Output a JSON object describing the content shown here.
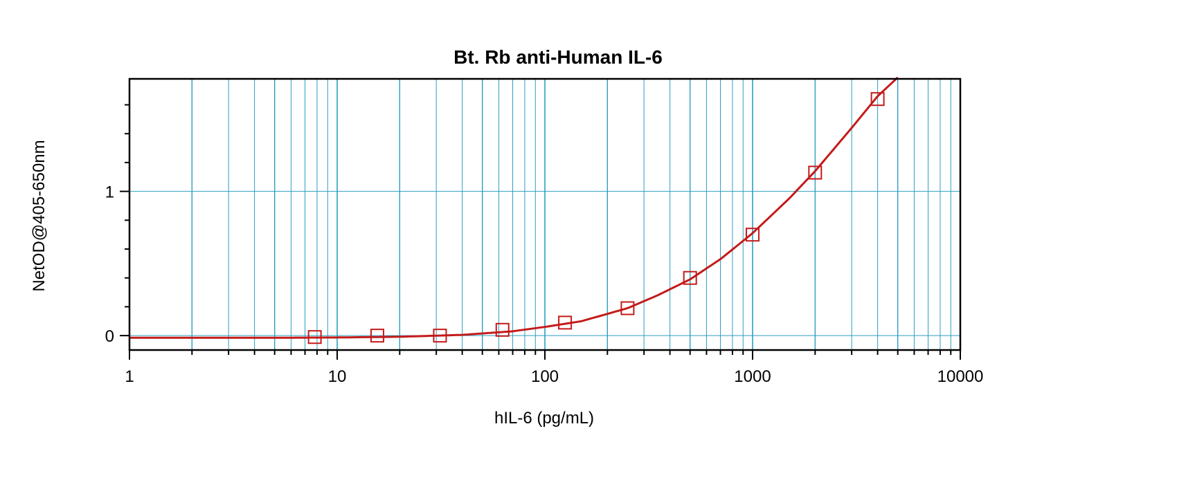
{
  "chart_data": {
    "type": "scatter",
    "title": "Bt. Rb anti-Human IL-6",
    "xlabel": "hIL-6 (pg/mL)",
    "ylabel": "NetOD@405-650nm",
    "x_scale": "log",
    "xlim": [
      1,
      10000
    ],
    "ylim": [
      -0.1,
      1.78
    ],
    "x_ticks": [
      "1",
      "10",
      "100",
      "1000",
      "10000"
    ],
    "y_ticks": [
      "0",
      "1"
    ],
    "grid": true,
    "series": [
      {
        "marker": "open-square",
        "x": [
          7.8,
          15.6,
          31.25,
          62.5,
          125,
          250,
          500,
          1000,
          2000,
          4000
        ],
        "y": [
          -0.01,
          0.0,
          0.0,
          0.04,
          0.09,
          0.19,
          0.4,
          0.7,
          1.13,
          1.64
        ]
      }
    ],
    "fit_curve": {
      "x": [
        1,
        5,
        10,
        20,
        40,
        70,
        100,
        150,
        250,
        350,
        500,
        700,
        1000,
        1500,
        2000,
        3000,
        4000,
        5000
      ],
      "y": [
        -0.015,
        -0.015,
        -0.013,
        -0.008,
        0.005,
        0.03,
        0.06,
        0.1,
        0.19,
        0.28,
        0.39,
        0.53,
        0.71,
        0.95,
        1.14,
        1.44,
        1.66,
        1.79
      ]
    },
    "colors": {
      "series": "#c41a1a",
      "grid": "#2b9ec1",
      "axis": "#000000"
    }
  }
}
